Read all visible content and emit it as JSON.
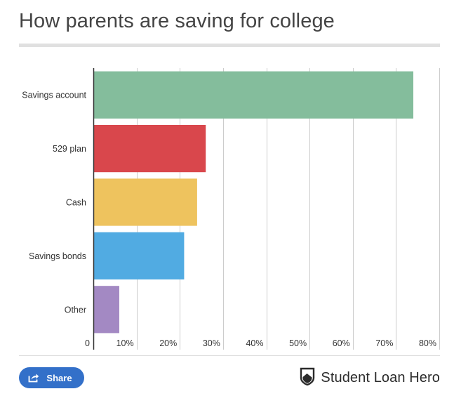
{
  "title": "How parents are saving for college",
  "chart_data": {
    "type": "bar",
    "orientation": "horizontal",
    "categories": [
      "Savings account",
      "529 plan",
      "Cash",
      "Savings bonds",
      "Other"
    ],
    "values": [
      74,
      26,
      24,
      21,
      6
    ],
    "colors": [
      "#84bd9c",
      "#d9474c",
      "#eec35e",
      "#51abe2",
      "#a389c3"
    ],
    "xlim": [
      0,
      80
    ],
    "xticks": [
      0,
      10,
      20,
      30,
      40,
      50,
      60,
      70,
      80
    ],
    "xtick_labels": [
      "0",
      "10%",
      "20%",
      "30%",
      "40%",
      "50%",
      "60%",
      "70%",
      "80%"
    ],
    "grid": true,
    "xlabel": "",
    "ylabel": ""
  },
  "share": {
    "label": "Share",
    "icon": "share-icon"
  },
  "brand": {
    "name": "Student Loan Hero",
    "icon": "shield-logo-icon"
  }
}
